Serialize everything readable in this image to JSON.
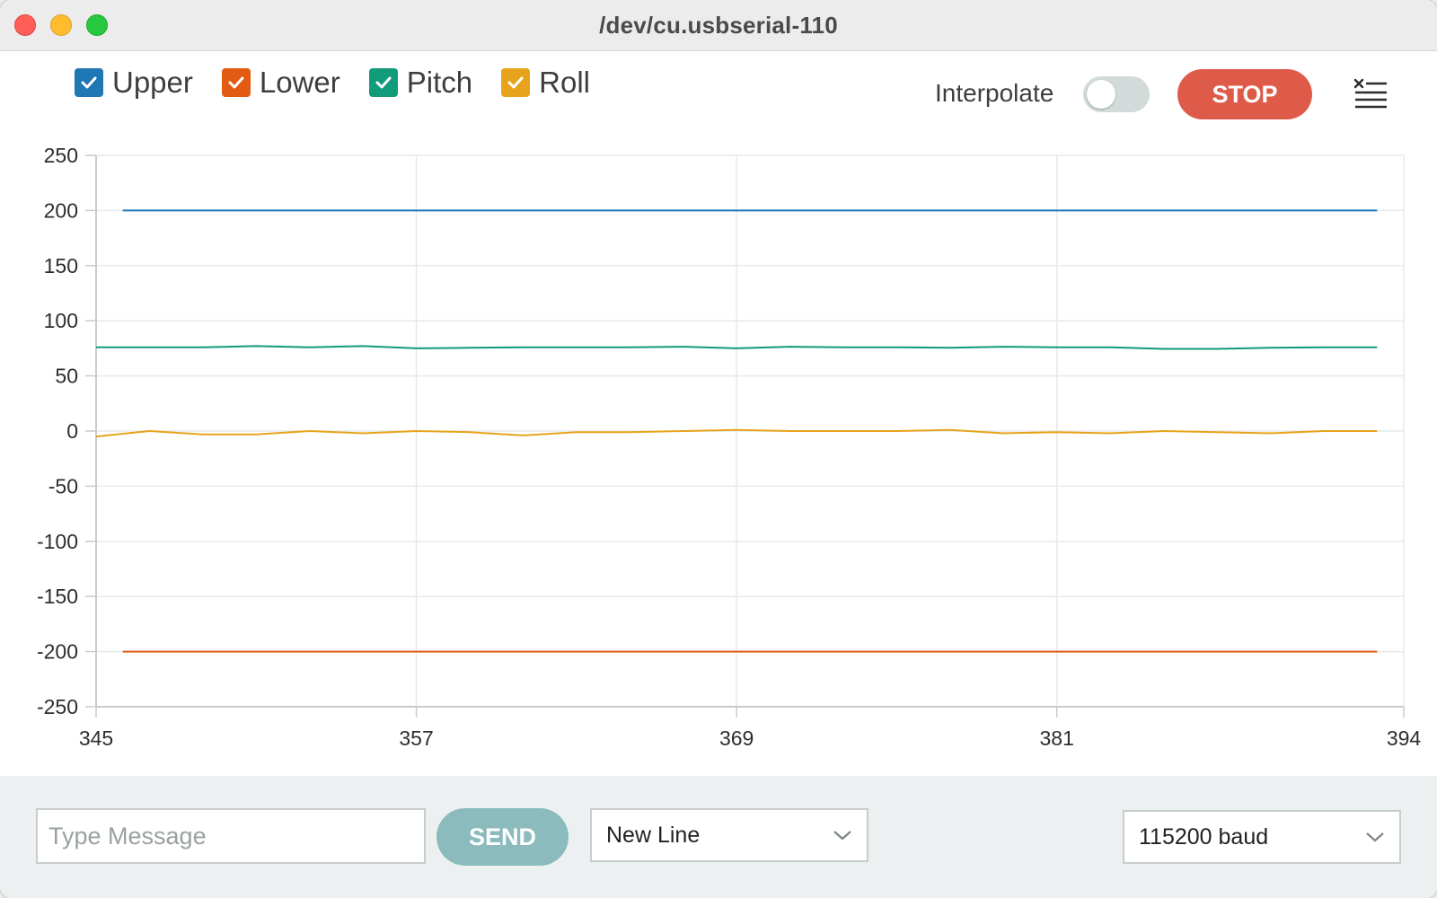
{
  "window": {
    "title": "/dev/cu.usbserial-110"
  },
  "legend": {
    "items": [
      {
        "label": "Upper",
        "color": "#1f77b4",
        "checked": true
      },
      {
        "label": "Lower",
        "color": "#e35b12",
        "checked": true
      },
      {
        "label": "Pitch",
        "color": "#129b7b",
        "checked": true
      },
      {
        "label": "Roll",
        "color": "#e8a31c",
        "checked": true
      }
    ]
  },
  "toolbar": {
    "interpolate_label": "Interpolate",
    "interpolate_on": false,
    "stop_label": "STOP",
    "clear_icon": "clear-list-icon"
  },
  "footer": {
    "message_placeholder": "Type Message",
    "message_value": "",
    "send_label": "SEND",
    "line_ending": "New Line",
    "baud_rate": "115200 baud"
  },
  "chart_data": {
    "type": "line",
    "title": "",
    "xlabel": "",
    "ylabel": "",
    "xlim": [
      345,
      394
    ],
    "ylim": [
      -250,
      250
    ],
    "x_ticks": [
      345,
      357,
      369,
      381,
      394
    ],
    "y_ticks": [
      250,
      200,
      150,
      100,
      50,
      0,
      -50,
      -100,
      -150,
      -200,
      -250
    ],
    "grid": true,
    "legend_position": "top-left",
    "series": [
      {
        "name": "Upper",
        "color": "#1f77b4",
        "x": [
          346,
          393
        ],
        "y": [
          200,
          200
        ]
      },
      {
        "name": "Lower",
        "color": "#e35b12",
        "x": [
          346,
          393
        ],
        "y": [
          -200,
          -200
        ]
      },
      {
        "name": "Pitch",
        "color": "#129b7b",
        "x": [
          345,
          347,
          349,
          351,
          353,
          355,
          357,
          359,
          361,
          363,
          365,
          367,
          369,
          371,
          373,
          375,
          377,
          379,
          381,
          383,
          385,
          387,
          389,
          391,
          393
        ],
        "y": [
          76,
          76,
          76,
          77,
          76,
          77,
          75,
          75.5,
          76,
          76,
          76,
          76.5,
          75,
          76.5,
          76,
          76,
          75.5,
          76.5,
          76,
          76,
          74.5,
          74.5,
          75.5,
          76,
          76
        ]
      },
      {
        "name": "Roll",
        "color": "#e8a31c",
        "x": [
          345,
          347,
          349,
          351,
          353,
          355,
          357,
          359,
          361,
          363,
          365,
          367,
          369,
          371,
          373,
          375,
          377,
          379,
          381,
          383,
          385,
          387,
          389,
          391,
          393
        ],
        "y": [
          -5,
          0,
          -3,
          -3,
          0,
          -2,
          0,
          -1,
          -4,
          -1,
          -1,
          0,
          1,
          0,
          0,
          0,
          1,
          -2,
          -1,
          -2,
          0,
          -1,
          -2,
          0,
          0
        ]
      }
    ]
  }
}
